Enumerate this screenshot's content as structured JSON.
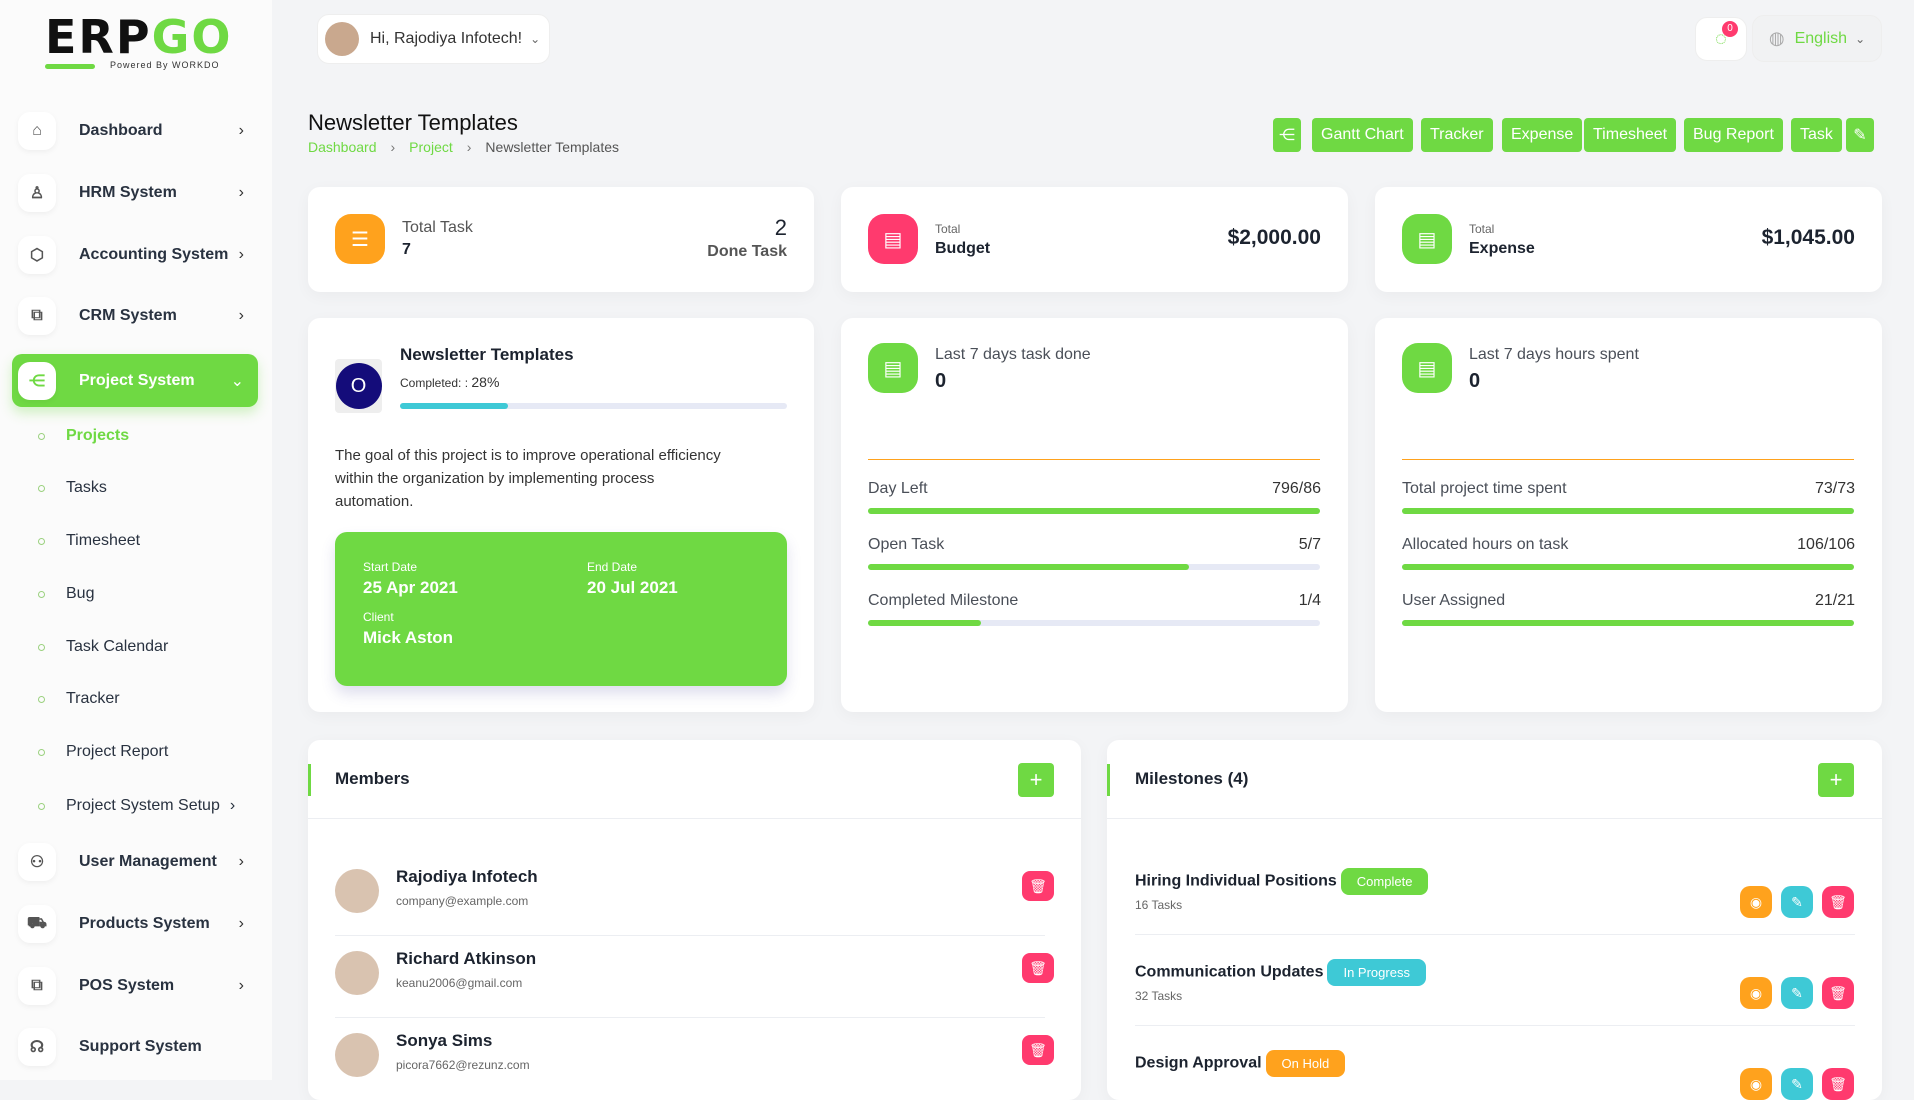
{
  "brand": {
    "logo_text_dark": "ERP",
    "logo_text_green": "GO",
    "powered_by": "Powered By WORKDO"
  },
  "colors": {
    "primary": "#6fd943",
    "orange": "#ffa21d",
    "pink": "#ff3a6e",
    "cyan": "#3ec9d6"
  },
  "header": {
    "greeting": "Hi, Rajodiya Infotech!",
    "notification_count": "0",
    "language": "English"
  },
  "sidebar": {
    "items": [
      {
        "label": "Dashboard",
        "icon": "home-icon"
      },
      {
        "label": "HRM System",
        "icon": "user-icon"
      },
      {
        "label": "Accounting System",
        "icon": "box-icon"
      },
      {
        "label": "CRM System",
        "icon": "layers-icon"
      },
      {
        "label": "Project System",
        "icon": "share-icon",
        "active": true
      }
    ],
    "sub_items": [
      "Projects",
      "Tasks",
      "Timesheet",
      "Bug",
      "Task Calendar",
      "Tracker",
      "Project Report",
      "Project System Setup"
    ],
    "bottom_items": [
      {
        "label": "User Management",
        "icon": "users-icon"
      },
      {
        "label": "Products System",
        "icon": "cart-icon"
      },
      {
        "label": "POS System",
        "icon": "pos-icon"
      },
      {
        "label": "Support System",
        "icon": "headphones-icon"
      }
    ]
  },
  "page": {
    "title": "Newsletter Templates",
    "breadcrumb": [
      "Dashboard",
      "Project",
      "Newsletter Templates"
    ]
  },
  "toolbar": {
    "buttons": [
      "Gantt Chart",
      "Tracker",
      "Expense",
      "Timesheet",
      "Bug Report",
      "Task"
    ]
  },
  "stats": {
    "total_task_label": "Total Task",
    "total_task": "7",
    "done_task": "2",
    "done_task_label": "Done Task",
    "budget_small": "Total",
    "budget_label": "Budget",
    "budget": "$2,000.00",
    "expense_small": "Total",
    "expense_label": "Expense",
    "expense": "$1,045.00"
  },
  "project": {
    "name": "Newsletter Templates",
    "completed_label": "Completed: :",
    "completed": "28%",
    "completed_pct": 28,
    "description": "The goal of this project is to improve operational efficiency within the organization by implementing process automation.",
    "start_label": "Start Date",
    "start": "25 Apr 2021",
    "end_label": "End Date",
    "end": "20 Jul 2021",
    "client_label": "Client",
    "client": "Mick Aston"
  },
  "tasks_card": {
    "label": "Last 7 days task done",
    "value": "0",
    "rows": [
      {
        "label": "Day Left",
        "value": "796/86",
        "pct": 100
      },
      {
        "label": "Open Task",
        "value": "5/7",
        "pct": 71
      },
      {
        "label": "Completed Milestone",
        "value": "1/4",
        "pct": 25
      }
    ]
  },
  "hours_card": {
    "label": "Last 7 days hours spent",
    "value": "0",
    "rows": [
      {
        "label": "Total project time spent",
        "value": "73/73",
        "pct": 100
      },
      {
        "label": "Allocated hours on task",
        "value": "106/106",
        "pct": 100
      },
      {
        "label": "User Assigned",
        "value": "21/21",
        "pct": 100
      }
    ]
  },
  "members": {
    "title": "Members",
    "list": [
      {
        "name": "Rajodiya Infotech",
        "email": "company@example.com"
      },
      {
        "name": "Richard Atkinson",
        "email": "keanu2006@gmail.com"
      },
      {
        "name": "Sonya Sims",
        "email": "picora7662@rezunz.com"
      }
    ]
  },
  "milestones": {
    "title": "Milestones (4)",
    "list": [
      {
        "name": "Hiring Individual Positions",
        "status": "Complete",
        "status_color": "#6fd943",
        "tasks": "16 Tasks"
      },
      {
        "name": "Communication Updates",
        "status": "In Progress",
        "status_color": "#3ec9d6",
        "tasks": "32 Tasks"
      },
      {
        "name": "Design Approval",
        "status": "On Hold",
        "status_color": "#ffa21d"
      }
    ]
  }
}
